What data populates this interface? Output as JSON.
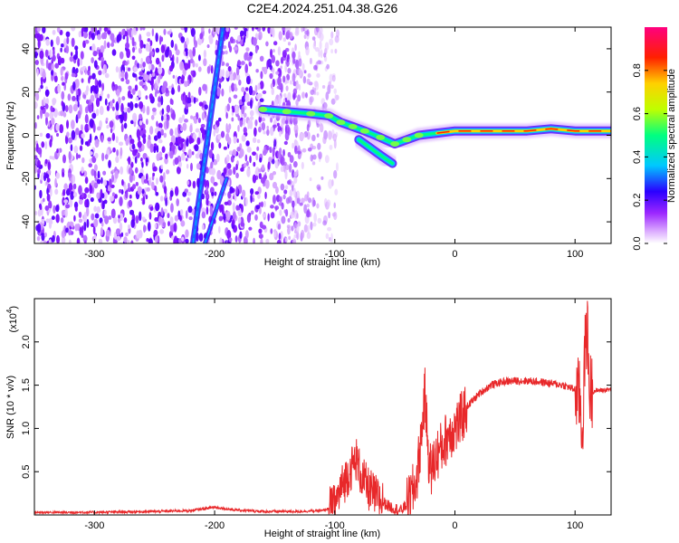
{
  "title": "C2E4.2024.251.04.38.G26",
  "chart_data": [
    {
      "type": "heatmap",
      "xlabel": "Height of straight line (km)",
      "ylabel": "Frequency (Hz)",
      "xlim": [
        -350,
        130
      ],
      "ylim": [
        -50,
        50
      ],
      "xticks": [
        -300,
        -200,
        -100,
        0,
        100
      ],
      "yticks": [
        -40,
        -20,
        0,
        20,
        40
      ],
      "xtick_labels": [
        "-300",
        "-200",
        "-100",
        "0",
        "100"
      ],
      "ytick_labels": [
        "-40",
        "-20",
        "0",
        "20",
        "40"
      ],
      "colorbar": {
        "label": "Normalized spectral amplitude",
        "range": [
          0,
          1
        ],
        "ticks": [
          0.0,
          0.2,
          0.4,
          0.6,
          0.8
        ],
        "tick_labels": [
          "0.0",
          "0.2",
          "0.4",
          "0.6",
          "0.8"
        ],
        "colormap": [
          "#ffffff",
          "#9c27ff",
          "#2a00ff",
          "#00c8ff",
          "#00ff80",
          "#bfff00",
          "#ffd000",
          "#ff2000",
          "#ff007f"
        ]
      },
      "features": {
        "noise_region_x": [
          -350,
          -120
        ],
        "streak_1": {
          "x": [
            -218,
            -193
          ],
          "y": [
            -50,
            50
          ]
        },
        "streak_2": {
          "x": [
            -208,
            -190
          ],
          "y": [
            -50,
            -20
          ]
        },
        "signal_track": [
          [
            -160,
            12
          ],
          [
            -140,
            11
          ],
          [
            -120,
            10
          ],
          [
            -105,
            9
          ],
          [
            -95,
            6
          ],
          [
            -85,
            4
          ],
          [
            -75,
            2
          ],
          [
            -62,
            -1
          ],
          [
            -50,
            -4
          ],
          [
            -40,
            -2
          ],
          [
            -30,
            0
          ],
          [
            -15,
            1
          ],
          [
            0,
            2
          ],
          [
            20,
            2
          ],
          [
            40,
            2
          ],
          [
            60,
            2
          ],
          [
            80,
            3
          ],
          [
            100,
            2
          ],
          [
            120,
            2
          ],
          [
            130,
            2
          ]
        ],
        "signal_branch": [
          [
            -80,
            -2
          ],
          [
            -70,
            -6
          ],
          [
            -60,
            -10
          ],
          [
            -52,
            -13
          ]
        ]
      }
    },
    {
      "type": "line",
      "xlabel": "Height of straight line (km)",
      "ylabel": "SNR (10 * v/v)",
      "exponent_label": "(x10",
      "exponent_value": "4",
      "xlim": [
        -350,
        130
      ],
      "ylim": [
        0,
        25000
      ],
      "xticks": [
        -300,
        -200,
        -100,
        0,
        100
      ],
      "yticks": [
        5000,
        10000,
        15000,
        20000
      ],
      "xtick_labels": [
        "-300",
        "-200",
        "-100",
        "0",
        "100"
      ],
      "ytick_labels": [
        "0.5",
        "1.0",
        "1.5",
        "2.0"
      ],
      "color": "#e8282a",
      "series": [
        {
          "x": [
            -350,
            -300,
            -250,
            -220,
            -200,
            -185,
            -160,
            -130,
            -110,
            -100,
            -95,
            -88,
            -82,
            -78,
            -72,
            -65,
            -55,
            -45,
            -38,
            -32,
            -28,
            -25,
            -22,
            -20,
            -15,
            -10,
            -5,
            0,
            5,
            10,
            20,
            30,
            40,
            50,
            60,
            70,
            80,
            90,
            100,
            104,
            106,
            108,
            110,
            112,
            115,
            120,
            130
          ],
          "y": [
            300,
            300,
            400,
            500,
            900,
            600,
            400,
            400,
            500,
            1000,
            3000,
            5000,
            6500,
            4500,
            3000,
            2000,
            1000,
            500,
            1500,
            4000,
            9000,
            14000,
            7000,
            5000,
            7000,
            8000,
            9500,
            10000,
            11000,
            12500,
            14000,
            15000,
            15400,
            15500,
            15500,
            15400,
            15200,
            15000,
            14500,
            13500,
            9000,
            18000,
            22000,
            14500,
            14300,
            14400,
            14500
          ]
        }
      ]
    }
  ]
}
